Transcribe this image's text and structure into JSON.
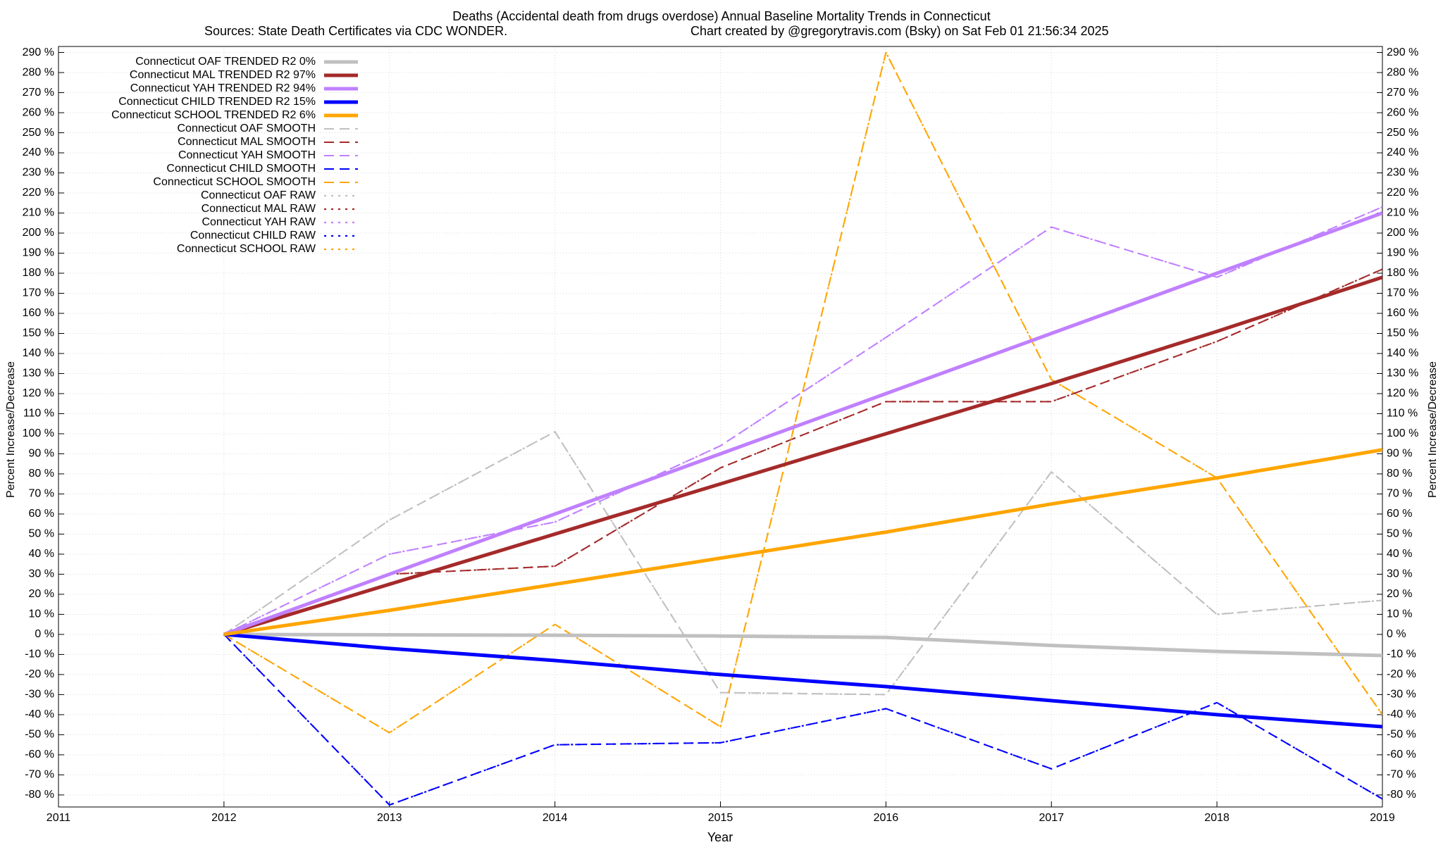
{
  "chart_data": {
    "type": "line",
    "title": "Deaths (Accidental death from drugs overdose)  Annual Baseline Mortality Trends in Connecticut",
    "subtitle": "Sources: State Death Certificates via CDC WONDER.",
    "subtitle_right": "Chart created by @gregorytravis.com (Bsky) on Sat Feb 01 21:56:34 2025",
    "xlabel": "Year",
    "ylabel": "Percent Increase/Decrease",
    "y2label": "Percent Increase/Decrease",
    "x": [
      2012,
      2013,
      2014,
      2015,
      2016,
      2017,
      2018,
      2019
    ],
    "xlim": [
      2011,
      2019
    ],
    "xticks": [
      2011,
      2012,
      2013,
      2014,
      2015,
      2016,
      2017,
      2018,
      2019
    ],
    "ylim": [
      -86,
      293
    ],
    "yticks": [
      {
        "value": 290,
        "label": "290 %"
      },
      {
        "value": 280,
        "label": "280 %"
      },
      {
        "value": 270,
        "label": "270 %"
      },
      {
        "value": 260,
        "label": "260 %"
      },
      {
        "value": 250,
        "label": "250 %"
      },
      {
        "value": 240,
        "label": "240 %"
      },
      {
        "value": 230,
        "label": "230 %"
      },
      {
        "value": 220,
        "label": "220 %"
      },
      {
        "value": 210,
        "label": "210 %"
      },
      {
        "value": 200,
        "label": "200 %"
      },
      {
        "value": 190,
        "label": "190 %"
      },
      {
        "value": 180,
        "label": "180 %"
      },
      {
        "value": 170,
        "label": "170 %"
      },
      {
        "value": 160,
        "label": "160 %"
      },
      {
        "value": 150,
        "label": "150 %"
      },
      {
        "value": 140,
        "label": "140 %"
      },
      {
        "value": 130,
        "label": "130 %"
      },
      {
        "value": 120,
        "label": "120 %"
      },
      {
        "value": 110,
        "label": "110 %"
      },
      {
        "value": 100,
        "label": "100 %"
      },
      {
        "value": 90,
        "label": "90 %"
      },
      {
        "value": 80,
        "label": "80 %"
      },
      {
        "value": 70,
        "label": "70 %"
      },
      {
        "value": 60,
        "label": "60 %"
      },
      {
        "value": 50,
        "label": "50 %"
      },
      {
        "value": 40,
        "label": "40 %"
      },
      {
        "value": 30,
        "label": "30 %"
      },
      {
        "value": 20,
        "label": "20 %"
      },
      {
        "value": 10,
        "label": "10 %"
      },
      {
        "value": 0,
        "label": "0 %"
      },
      {
        "value": -10,
        "label": "-10 %"
      },
      {
        "value": -20,
        "label": "-20 %"
      },
      {
        "value": -30,
        "label": "-30 %"
      },
      {
        "value": -40,
        "label": "-40 %"
      },
      {
        "value": -50,
        "label": "-50 %"
      },
      {
        "value": -60,
        "label": "-60 %"
      },
      {
        "value": -70,
        "label": "-70 %"
      },
      {
        "value": -80,
        "label": "-80 %"
      }
    ],
    "grid": true,
    "legend": "upper left",
    "series": [
      {
        "name": "Connecticut OAF TRENDED R2  0%",
        "color": "#c0c0c0",
        "dash": "solid",
        "values": [
          0,
          -0.2,
          -0.4,
          -0.8,
          -1.5,
          -5.5,
          -8.5,
          -10.5
        ]
      },
      {
        "name": "Connecticut MAL TRENDED R2  97%",
        "color": "#a52a2a",
        "dash": "solid",
        "values": [
          0,
          25,
          50,
          75,
          100,
          125,
          151,
          178
        ]
      },
      {
        "name": "Connecticut YAH TRENDED R2  94%",
        "color": "#c080ff",
        "dash": "solid",
        "values": [
          0,
          30,
          60,
          90,
          120,
          150,
          180,
          210
        ]
      },
      {
        "name": "Connecticut CHILD TRENDED R2  15%",
        "color": "#0000ff",
        "dash": "solid",
        "values": [
          0,
          -7,
          -13,
          -20,
          -26,
          -33,
          -40,
          -46
        ]
      },
      {
        "name": "Connecticut SCHOOL TRENDED R2  6%",
        "color": "#ffa500",
        "dash": "solid",
        "values": [
          0,
          12,
          25,
          38,
          51,
          65,
          78,
          92
        ]
      },
      {
        "name": "Connecticut OAF SMOOTH",
        "color": "#c0c0c0",
        "dash": "dashed",
        "values": [
          0,
          57,
          101,
          -29,
          -30,
          81,
          10,
          17
        ]
      },
      {
        "name": "Connecticut MAL SMOOTH",
        "color": "#a52a2a",
        "dash": "dashed",
        "values": [
          0,
          30,
          34,
          83,
          116,
          116,
          146,
          182
        ]
      },
      {
        "name": "Connecticut YAH SMOOTH",
        "color": "#c080ff",
        "dash": "dashed",
        "values": [
          0,
          40,
          56,
          94,
          148,
          203,
          178,
          213
        ]
      },
      {
        "name": "Connecticut CHILD SMOOTH",
        "color": "#0000ff",
        "dash": "dashed",
        "values": [
          0,
          -85,
          -55,
          -54,
          -37,
          -67,
          -34,
          -82
        ]
      },
      {
        "name": "Connecticut SCHOOL SMOOTH",
        "color": "#ffa500",
        "dash": "dashed",
        "values": [
          0,
          -49,
          5,
          -46,
          290,
          127,
          78,
          -40
        ]
      },
      {
        "name": "Connecticut OAF RAW",
        "color": "#c0c0c0",
        "dash": "dotted",
        "values": [
          0,
          57,
          101,
          -29,
          -30,
          81,
          10,
          17
        ]
      },
      {
        "name": "Connecticut MAL RAW",
        "color": "#a52a2a",
        "dash": "dotted",
        "values": [
          0,
          30,
          34,
          83,
          116,
          116,
          146,
          182
        ]
      },
      {
        "name": "Connecticut YAH RAW",
        "color": "#c080ff",
        "dash": "dotted",
        "values": [
          0,
          40,
          56,
          94,
          148,
          203,
          178,
          213
        ]
      },
      {
        "name": "Connecticut CHILD RAW",
        "color": "#0000ff",
        "dash": "dotted",
        "values": [
          0,
          -85,
          -55,
          -54,
          -37,
          -67,
          -34,
          -82
        ]
      },
      {
        "name": "Connecticut SCHOOL RAW",
        "color": "#ffa500",
        "dash": "dotted",
        "values": [
          0,
          -49,
          5,
          -46,
          290,
          127,
          78,
          -40
        ]
      }
    ]
  }
}
